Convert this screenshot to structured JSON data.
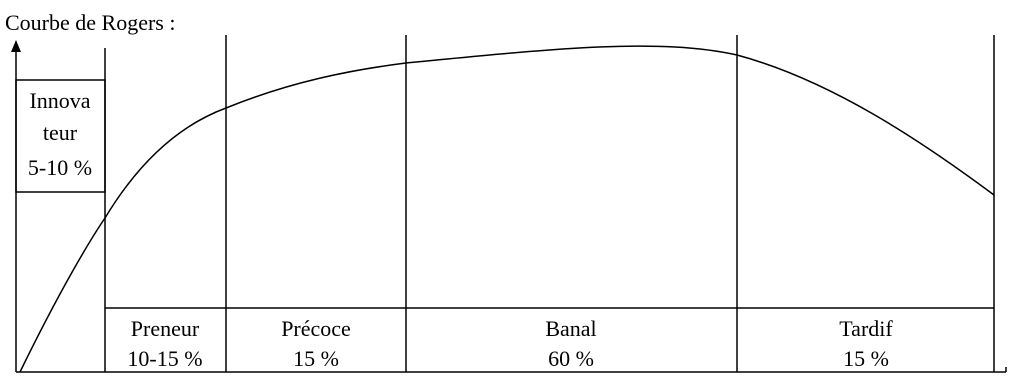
{
  "title": "Courbe de Rogers :",
  "segments": [
    {
      "name": "Innova",
      "name2": "teur",
      "pct": "5-10 %"
    },
    {
      "name": "Preneur",
      "pct": "10-15 %"
    },
    {
      "name": "Précoce",
      "pct": "15 %"
    },
    {
      "name": "Banal",
      "pct": "60 %"
    },
    {
      "name": "Tardif",
      "pct": "15 %"
    }
  ]
}
